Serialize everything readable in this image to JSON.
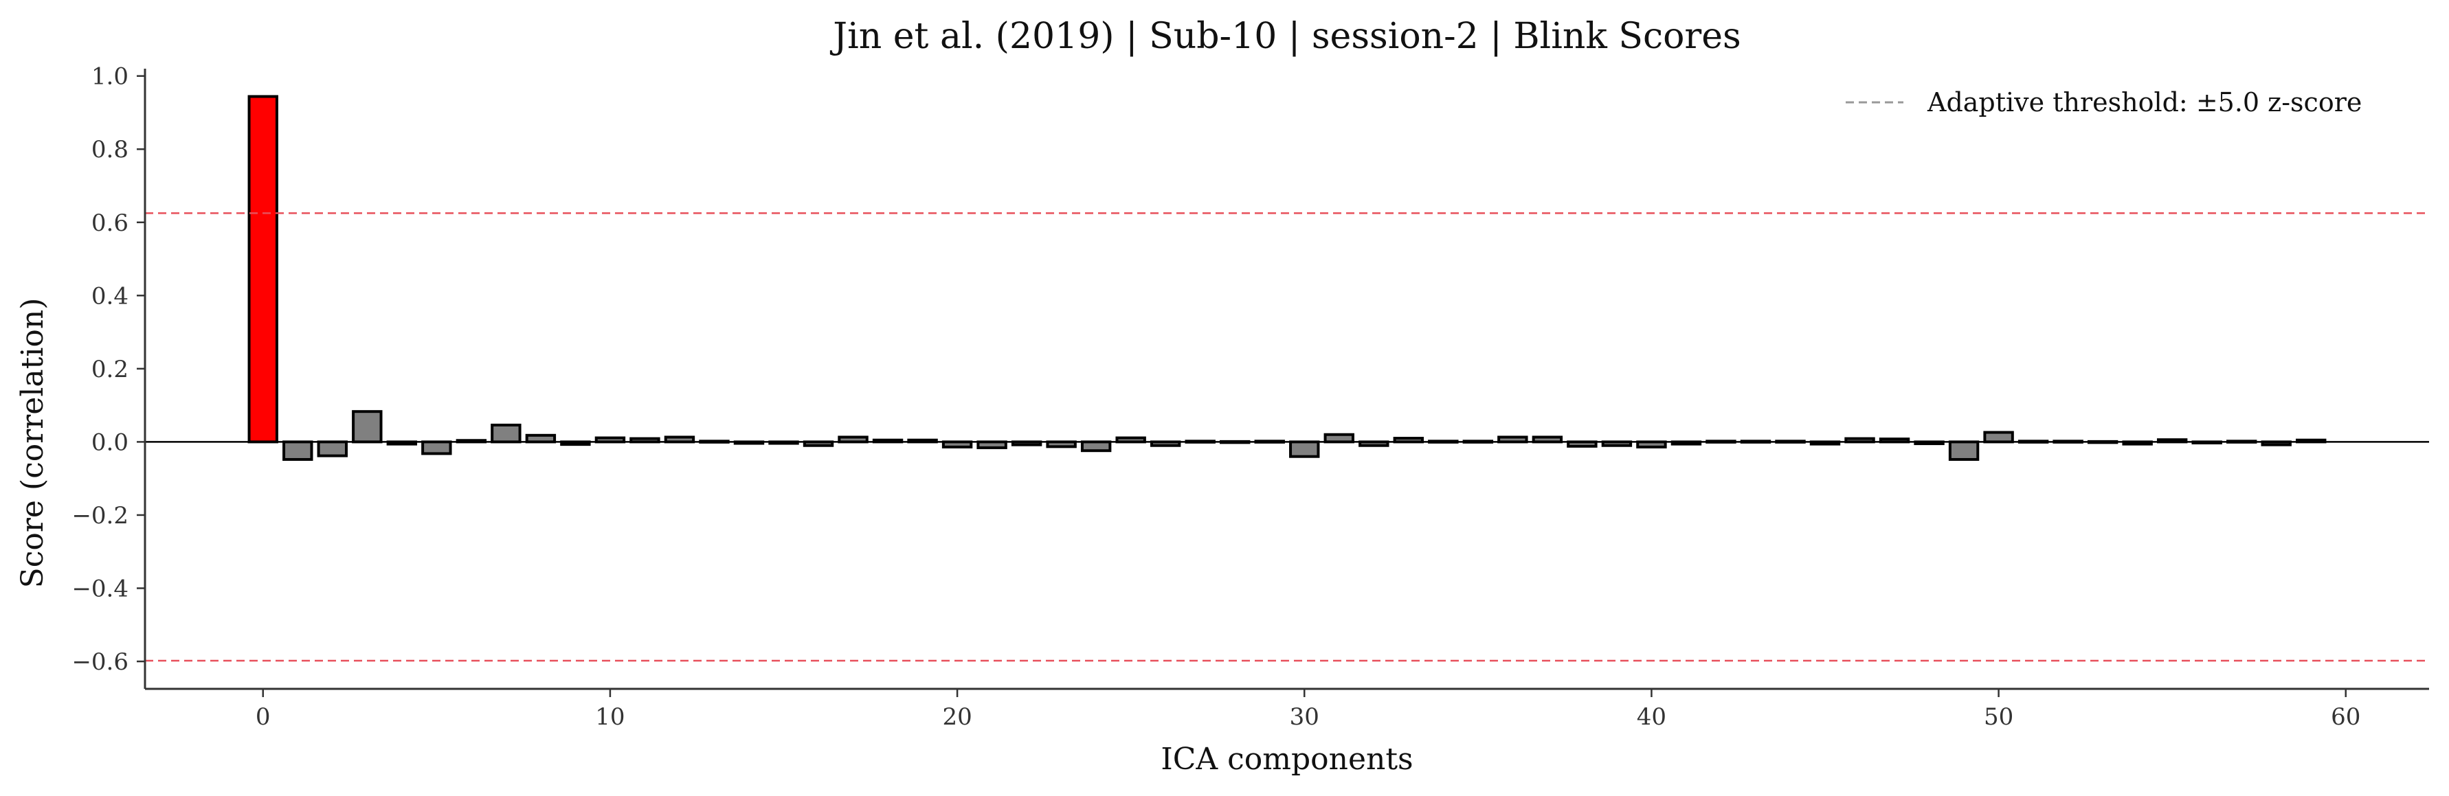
{
  "chart_data": {
    "type": "bar",
    "title": "Jin et al. (2019) | Sub-10 | session-2 | Blink Scores",
    "xlabel": "ICA components",
    "ylabel": "Score (correlation)",
    "xlim": [
      -3.4,
      62.4
    ],
    "ylim": [
      -0.675,
      1.02
    ],
    "xticks": [
      0,
      10,
      20,
      30,
      40,
      50,
      60
    ],
    "yticks": [
      -0.6,
      -0.4,
      -0.2,
      0.0,
      0.2,
      0.4,
      0.6,
      0.8,
      1.0
    ],
    "x": [
      0,
      1,
      2,
      3,
      4,
      5,
      6,
      7,
      8,
      9,
      10,
      11,
      12,
      13,
      14,
      15,
      16,
      17,
      18,
      19,
      20,
      21,
      22,
      23,
      24,
      25,
      26,
      27,
      28,
      29,
      30,
      31,
      32,
      33,
      34,
      35,
      36,
      37,
      38,
      39,
      40,
      41,
      42,
      43,
      44,
      45,
      46,
      47,
      48,
      49,
      50,
      51,
      52,
      53,
      54,
      55,
      56,
      57,
      58,
      59
    ],
    "values": [
      0.944,
      -0.048,
      -0.038,
      0.083,
      -0.006,
      -0.032,
      0.004,
      0.046,
      0.018,
      -0.007,
      0.011,
      0.009,
      0.013,
      0.002,
      -0.004,
      -0.004,
      -0.01,
      0.013,
      0.005,
      0.005,
      -0.014,
      -0.016,
      -0.008,
      -0.013,
      -0.024,
      0.011,
      -0.01,
      0.002,
      0.001,
      0.002,
      -0.04,
      0.02,
      -0.01,
      0.01,
      0.002,
      0.002,
      0.013,
      0.013,
      -0.012,
      -0.01,
      -0.014,
      -0.006,
      0.002,
      0.002,
      0.002,
      -0.006,
      0.009,
      0.008,
      -0.005,
      -0.048,
      0.026,
      0.002,
      0.002,
      0.001,
      -0.006,
      0.006,
      -0.003,
      0.002,
      -0.008,
      0.005
    ],
    "highlight_color": "#ff0000",
    "bar_color": "#808080",
    "threshold_color": "#e8505b",
    "thresholds": [
      0.625,
      -0.598
    ],
    "legend": {
      "label": "Adaptive threshold: ±5.0 z-score",
      "placement": "upper-right",
      "line_color": "#999999"
    },
    "grid": false
  }
}
